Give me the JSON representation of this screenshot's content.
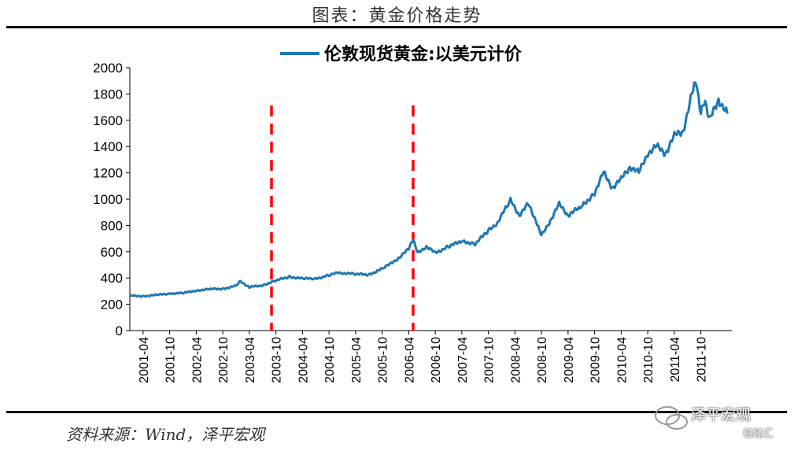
{
  "figure_title": "图表：黄金价格走势",
  "source_text": "资料来源：Wind，泽平宏观",
  "watermark": {
    "brand": "泽平宏观",
    "sub": "格隆汇"
  },
  "colors": {
    "series": "#1f77b4",
    "marker": "#ff0000",
    "axis": "#000000"
  },
  "chart_data": {
    "type": "line",
    "legend": {
      "position": "top-center",
      "entries": [
        "伦敦现货黄金:以美元计价"
      ]
    },
    "ylim": [
      0,
      2000
    ],
    "yticks": [
      0,
      200,
      400,
      600,
      800,
      1000,
      1200,
      1400,
      1600,
      1800,
      2000
    ],
    "x_tick_labels": [
      "2001-04",
      "2001-10",
      "2002-04",
      "2002-10",
      "2003-04",
      "2003-10",
      "2004-04",
      "2004-10",
      "2005-04",
      "2005-10",
      "2006-04",
      "2006-10",
      "2007-04",
      "2007-10",
      "2008-04",
      "2008-10",
      "2009-04",
      "2009-10",
      "2010-04",
      "2010-10",
      "2011-04",
      "2011-10"
    ],
    "grid": false,
    "vertical_markers": [
      {
        "x": "2003-09",
        "style": "dashed",
        "color": "#ff0000"
      },
      {
        "x": "2006-05",
        "style": "dashed",
        "color": "#ff0000"
      }
    ],
    "series": [
      {
        "name": "伦敦现货黄金:以美元计价",
        "color": "#1f77b4",
        "points": [
          [
            "2001-01",
            265
          ],
          [
            "2001-04",
            262
          ],
          [
            "2001-07",
            270
          ],
          [
            "2001-10",
            282
          ],
          [
            "2002-01",
            285
          ],
          [
            "2002-04",
            305
          ],
          [
            "2002-07",
            315
          ],
          [
            "2002-10",
            318
          ],
          [
            "2003-01",
            340
          ],
          [
            "2003-02",
            375
          ],
          [
            "2003-04",
            330
          ],
          [
            "2003-07",
            345
          ],
          [
            "2003-10",
            380
          ],
          [
            "2004-01",
            410
          ],
          [
            "2004-04",
            395
          ],
          [
            "2004-07",
            395
          ],
          [
            "2004-10",
            420
          ],
          [
            "2004-12",
            440
          ],
          [
            "2005-04",
            430
          ],
          [
            "2005-07",
            425
          ],
          [
            "2005-10",
            470
          ],
          [
            "2005-12",
            510
          ],
          [
            "2006-02",
            560
          ],
          [
            "2006-04",
            620
          ],
          [
            "2006-05",
            700
          ],
          [
            "2006-06",
            590
          ],
          [
            "2006-08",
            640
          ],
          [
            "2006-10",
            590
          ],
          [
            "2007-01",
            640
          ],
          [
            "2007-04",
            680
          ],
          [
            "2007-07",
            660
          ],
          [
            "2007-10",
            760
          ],
          [
            "2007-12",
            820
          ],
          [
            "2008-03",
            990
          ],
          [
            "2008-05",
            880
          ],
          [
            "2008-07",
            960
          ],
          [
            "2008-09",
            820
          ],
          [
            "2008-10",
            720
          ],
          [
            "2008-12",
            840
          ],
          [
            "2009-02",
            960
          ],
          [
            "2009-04",
            880
          ],
          [
            "2009-07",
            940
          ],
          [
            "2009-10",
            1050
          ],
          [
            "2009-12",
            1200
          ],
          [
            "2010-02",
            1090
          ],
          [
            "2010-04",
            1150
          ],
          [
            "2010-06",
            1250
          ],
          [
            "2010-08",
            1200
          ],
          [
            "2010-10",
            1350
          ],
          [
            "2010-12",
            1400
          ],
          [
            "2011-02",
            1350
          ],
          [
            "2011-04",
            1480
          ],
          [
            "2011-06",
            1520
          ],
          [
            "2011-08",
            1800
          ],
          [
            "2011-09",
            1900
          ],
          [
            "2011-10",
            1650
          ],
          [
            "2011-11",
            1750
          ],
          [
            "2011-12",
            1600
          ],
          [
            "2012-02",
            1760
          ],
          [
            "2012-04",
            1650
          ]
        ]
      }
    ]
  }
}
